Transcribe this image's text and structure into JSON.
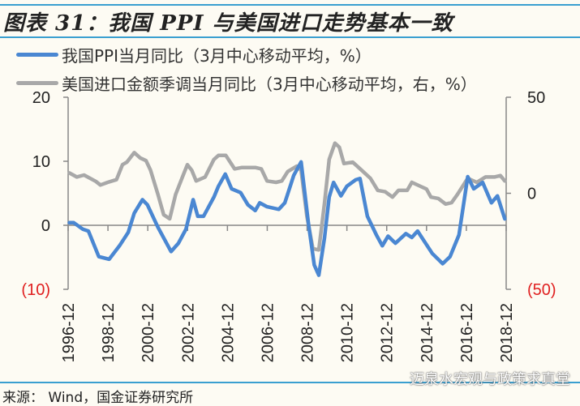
{
  "title": "图表 31：我国 PPI 与美国进口走势基本一致",
  "source": "来源： Wind，国金证券研究所",
  "watermark": "迈泉水宏观与政策求真堂",
  "chart_data": {
    "type": "line",
    "title": "图表 31：我国 PPI 与美国进口走势基本一致",
    "x_tick_labels": [
      "1996-12",
      "1998-12",
      "2000-12",
      "2002-12",
      "2004-12",
      "2006-12",
      "2008-12",
      "2010-12",
      "2012-12",
      "2014-12",
      "2016-12",
      "2018-12"
    ],
    "xlim": [
      1996.92,
      2018.92
    ],
    "ylim_left": [
      -10,
      20
    ],
    "ylim_right": [
      -50,
      50
    ],
    "left_tick_labels": [
      "20",
      "10",
      "0",
      "(10)"
    ],
    "right_tick_labels": [
      "50",
      "0",
      "(50)"
    ],
    "negative_label_color": "#e02020",
    "grid": false,
    "legend_position": "top-left",
    "series": [
      {
        "name": "我国PPI当月同比（3月中心移动平均，%）",
        "axis": "left",
        "color": "#4a87d2",
        "x": [
          1996.98,
          1997.2,
          1997.65,
          1997.94,
          1998.46,
          1998.98,
          1999.5,
          1999.94,
          2000.24,
          2000.65,
          2000.9,
          2001.43,
          2002.09,
          2002.46,
          2002.84,
          2003.2,
          2003.43,
          2003.72,
          2004.24,
          2004.47,
          2004.81,
          2005.13,
          2005.58,
          2005.95,
          2006.32,
          2006.54,
          2006.91,
          2007.5,
          2007.8,
          2008.25,
          2008.62,
          2008.99,
          2009.28,
          2009.51,
          2009.8,
          2010.03,
          2010.25,
          2010.62,
          2010.92,
          2011.36,
          2011.58,
          2011.95,
          2012.4,
          2012.7,
          2012.99,
          2013.36,
          2013.88,
          2014.18,
          2014.47,
          2015.21,
          2015.73,
          2016.1,
          2016.55,
          2016.99,
          2017.29,
          2017.74,
          2018.18,
          2018.48,
          2018.85
        ],
        "values": [
          0.4,
          0.4,
          -0.6,
          -0.9,
          -4.9,
          -5.3,
          -3.2,
          -1.1,
          1.9,
          4.0,
          3.2,
          -0.3,
          -4.1,
          -2.8,
          -0.6,
          4.0,
          1.4,
          1.4,
          4.4,
          6.1,
          8.0,
          5.7,
          5.1,
          3.2,
          2.3,
          3.5,
          2.9,
          2.5,
          3.5,
          7.8,
          9.9,
          0.2,
          -6.2,
          -7.8,
          -1.9,
          4.4,
          6.7,
          4.6,
          6.1,
          7.1,
          7.3,
          1.4,
          -1.5,
          -3.2,
          -1.7,
          -2.8,
          -1.3,
          -1.9,
          -0.9,
          -4.4,
          -6.0,
          -4.9,
          -1.5,
          7.6,
          5.7,
          6.7,
          3.5,
          4.6,
          1.0
        ]
      },
      {
        "name": "美国进口金额季调当月同比（3月中心移动平均，右，%）",
        "axis": "right",
        "color": "#a8a8a8",
        "x": [
          1996.98,
          1997.35,
          1997.72,
          1998.31,
          1998.54,
          1998.91,
          1999.35,
          1999.65,
          1999.87,
          2000.24,
          2000.54,
          2000.83,
          2001.06,
          2001.43,
          2001.72,
          2002.02,
          2002.32,
          2002.69,
          2002.91,
          2003.13,
          2003.35,
          2003.8,
          2004.24,
          2004.47,
          2004.84,
          2005.28,
          2005.65,
          2006.32,
          2006.62,
          2006.91,
          2007.36,
          2007.65,
          2007.95,
          2008.4,
          2008.62,
          2008.91,
          2009.21,
          2009.51,
          2009.8,
          2010.03,
          2010.32,
          2010.54,
          2010.77,
          2011.21,
          2011.66,
          2012.1,
          2012.47,
          2012.84,
          2013.21,
          2013.51,
          2013.95,
          2014.18,
          2014.62,
          2014.92,
          2015.14,
          2015.51,
          2015.88,
          2016.18,
          2016.47,
          2016.99,
          2017.44,
          2017.88,
          2018.33,
          2018.63,
          2018.85
        ],
        "values": [
          10.6,
          8.5,
          9.5,
          6.2,
          4.3,
          5.7,
          7.1,
          14.9,
          16.2,
          21.2,
          18.4,
          17.0,
          12.0,
          -0.6,
          -11.2,
          -13.3,
          -0.6,
          9.2,
          14.9,
          12.0,
          6.4,
          8.5,
          17.6,
          19.7,
          19.7,
          12.7,
          13.4,
          13.4,
          12.7,
          6.4,
          5.7,
          6.4,
          11.3,
          14.1,
          12.0,
          -11.9,
          -28.8,
          -29.5,
          -4.9,
          17.6,
          26.1,
          24.0,
          15.5,
          16.2,
          12.0,
          7.8,
          1.5,
          0.8,
          -2.0,
          1.5,
          1.5,
          5.7,
          3.6,
          2.2,
          -2.0,
          -2.7,
          -5.6,
          -4.9,
          -0.6,
          7.8,
          5.7,
          8.5,
          8.5,
          9.2,
          6.4
        ]
      }
    ]
  }
}
